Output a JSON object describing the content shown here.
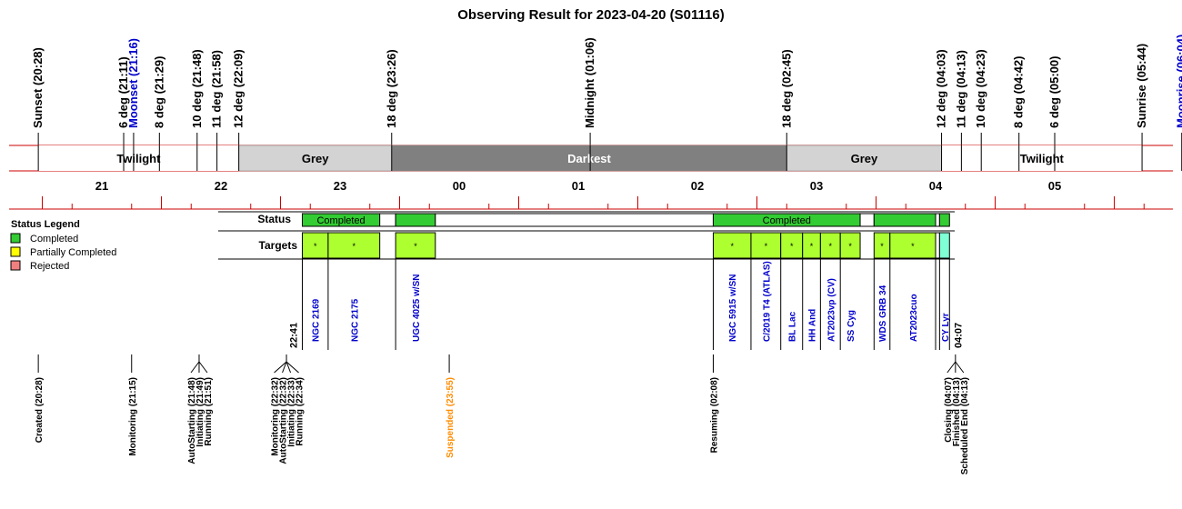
{
  "chart_data": {
    "type": "timeline",
    "title": "Observing Result for 2023-04-20 (S01116)",
    "time_range": [
      "20:28",
      "06:04"
    ],
    "hour_ticks": [
      "21",
      "22",
      "23",
      "00",
      "01",
      "02",
      "03",
      "04",
      "05"
    ],
    "events": [
      {
        "label": "Sunset (20:28)",
        "time": "20:28",
        "color": "#000000"
      },
      {
        "label": "6 deg (21:11)",
        "time": "21:11",
        "color": "#000000"
      },
      {
        "label": "Moonset (21:16)",
        "time": "21:16",
        "color": "#0000cc"
      },
      {
        "label": "8 deg (21:29)",
        "time": "21:29",
        "color": "#000000"
      },
      {
        "label": "10 deg (21:48)",
        "time": "21:48",
        "color": "#000000"
      },
      {
        "label": "11 deg (21:58)",
        "time": "21:58",
        "color": "#000000"
      },
      {
        "label": "12 deg (22:09)",
        "time": "22:09",
        "color": "#000000"
      },
      {
        "label": "18 deg (23:26)",
        "time": "23:26",
        "color": "#000000"
      },
      {
        "label": "Midnight (01:06)",
        "time": "01:06",
        "color": "#000000"
      },
      {
        "label": "18 deg (02:45)",
        "time": "02:45",
        "color": "#000000"
      },
      {
        "label": "12 deg (04:03)",
        "time": "04:03",
        "color": "#000000"
      },
      {
        "label": "11 deg (04:13)",
        "time": "04:13",
        "color": "#000000"
      },
      {
        "label": "10 deg (04:23)",
        "time": "04:23",
        "color": "#000000"
      },
      {
        "label": "8 deg (04:42)",
        "time": "04:42",
        "color": "#000000"
      },
      {
        "label": "6 deg (05:00)",
        "time": "05:00",
        "color": "#000000"
      },
      {
        "label": "Sunrise (05:44)",
        "time": "05:44",
        "color": "#000000"
      },
      {
        "label": "Moonrise (06:04)",
        "time": "06:04",
        "color": "#0000cc"
      }
    ],
    "sky_bands": [
      {
        "label": "Twilight",
        "start": "20:28",
        "end": "22:09",
        "color": "#ffffff",
        "text_color": "#000000"
      },
      {
        "label": "Grey",
        "start": "22:09",
        "end": "23:26",
        "color": "#d3d3d3",
        "text_color": "#000000"
      },
      {
        "label": "Darkest",
        "start": "23:26",
        "end": "02:45",
        "color": "#808080",
        "text_color": "#ffffff"
      },
      {
        "label": "Grey",
        "start": "02:45",
        "end": "04:03",
        "color": "#d3d3d3",
        "text_color": "#000000"
      },
      {
        "label": "Twilight",
        "start": "04:03",
        "end": "05:44",
        "color": "#ffffff",
        "text_color": "#000000"
      }
    ],
    "legend": {
      "title": "Status Legend",
      "items": [
        {
          "label": "Completed",
          "color": "#33cc33"
        },
        {
          "label": "Partially Completed",
          "color": "#ffff00"
        },
        {
          "label": "Rejected",
          "color": "#f08080"
        }
      ]
    },
    "row_labels": {
      "status": "Status",
      "targets": "Targets"
    },
    "status_blocks": [
      {
        "start": "22:41",
        "end": "23:20",
        "label": "Completed",
        "color": "#33cc33"
      },
      {
        "start": "23:20",
        "end": "23:28",
        "label": "",
        "color": "#ffffff"
      },
      {
        "start": "23:28",
        "end": "23:48",
        "label": "",
        "color": "#33cc33"
      },
      {
        "start": "23:48",
        "end": "02:08",
        "label": "",
        "color": "#ffffff"
      },
      {
        "start": "02:08",
        "end": "03:22",
        "label": "Completed",
        "color": "#33cc33"
      },
      {
        "start": "03:22",
        "end": "03:29",
        "label": "",
        "color": "#ffffff"
      },
      {
        "start": "03:29",
        "end": "04:00",
        "label": "",
        "color": "#33cc33"
      },
      {
        "start": "04:00",
        "end": "04:02",
        "label": "",
        "color": "#ffffff"
      },
      {
        "start": "04:02",
        "end": "04:07",
        "label": "",
        "color": "#33cc33"
      }
    ],
    "targets": [
      {
        "name": "NGC 2169",
        "start": "22:41",
        "end": "22:54",
        "color": "#adff2f",
        "mark": "*"
      },
      {
        "name": "NGC 2175",
        "start": "22:54",
        "end": "23:20",
        "color": "#adff2f",
        "mark": "*"
      },
      {
        "name": "UGC 4025 w/SN",
        "start": "23:28",
        "end": "23:48",
        "color": "#adff2f",
        "mark": "*"
      },
      {
        "name": "NGC 5915 w/SN",
        "start": "02:08",
        "end": "02:27",
        "color": "#adff2f",
        "mark": "*"
      },
      {
        "name": "C/2019 T4 (ATLAS)",
        "start": "02:27",
        "end": "02:42",
        "color": "#adff2f",
        "mark": "*"
      },
      {
        "name": "BL Lac",
        "start": "02:42",
        "end": "02:53",
        "color": "#adff2f",
        "mark": "*"
      },
      {
        "name": "HH And",
        "start": "02:53",
        "end": "03:02",
        "color": "#adff2f",
        "mark": "*"
      },
      {
        "name": "AT2023vp (CV)",
        "start": "03:02",
        "end": "03:12",
        "color": "#adff2f",
        "mark": "*"
      },
      {
        "name": "SS Cyg",
        "start": "03:12",
        "end": "03:22",
        "color": "#adff2f",
        "mark": "*"
      },
      {
        "name": "WDS GRB 34",
        "start": "03:29",
        "end": "03:37",
        "color": "#adff2f",
        "mark": "*"
      },
      {
        "name": "AT2023cuo",
        "start": "03:37",
        "end": "04:00",
        "color": "#adff2f",
        "mark": "*"
      },
      {
        "name": "",
        "start": "04:00",
        "end": "04:02",
        "color": "#ffffff",
        "mark": ""
      },
      {
        "name": "CY Lyr",
        "start": "04:02",
        "end": "04:07",
        "color": "#7fffd4",
        "mark": ""
      }
    ],
    "bracket_times": [
      {
        "label": "22:41",
        "time": "22:41",
        "side": "left"
      },
      {
        "label": "04:07",
        "time": "04:07",
        "side": "right"
      }
    ],
    "state_changes": [
      {
        "labels": [
          "Created (20:28)"
        ],
        "time": "20:28",
        "color": "#000000"
      },
      {
        "labels": [
          "Monitoring (21:15)"
        ],
        "time": "21:15",
        "color": "#000000"
      },
      {
        "labels": [
          "AutoStarting (21:48)",
          "Initiating (21:49)",
          "Running (21:51)"
        ],
        "time": "21:49",
        "color": "#000000"
      },
      {
        "labels": [
          "Monitoring (22:32)",
          "AutoStarting (22:32)",
          "Initiating (22:33)",
          "Running (22:34)"
        ],
        "time": "22:33",
        "color": "#000000"
      },
      {
        "labels": [
          "Suspended (23:55)"
        ],
        "time": "23:55",
        "color": "#ff8c00"
      },
      {
        "labels": [
          "Resuming (02:08)"
        ],
        "time": "02:08",
        "color": "#000000"
      },
      {
        "labels": [
          "Closing (04:07)",
          "Finished (04:13)",
          "Scheduled End (04:13)"
        ],
        "time": "04:10",
        "color": "#000000"
      }
    ]
  }
}
